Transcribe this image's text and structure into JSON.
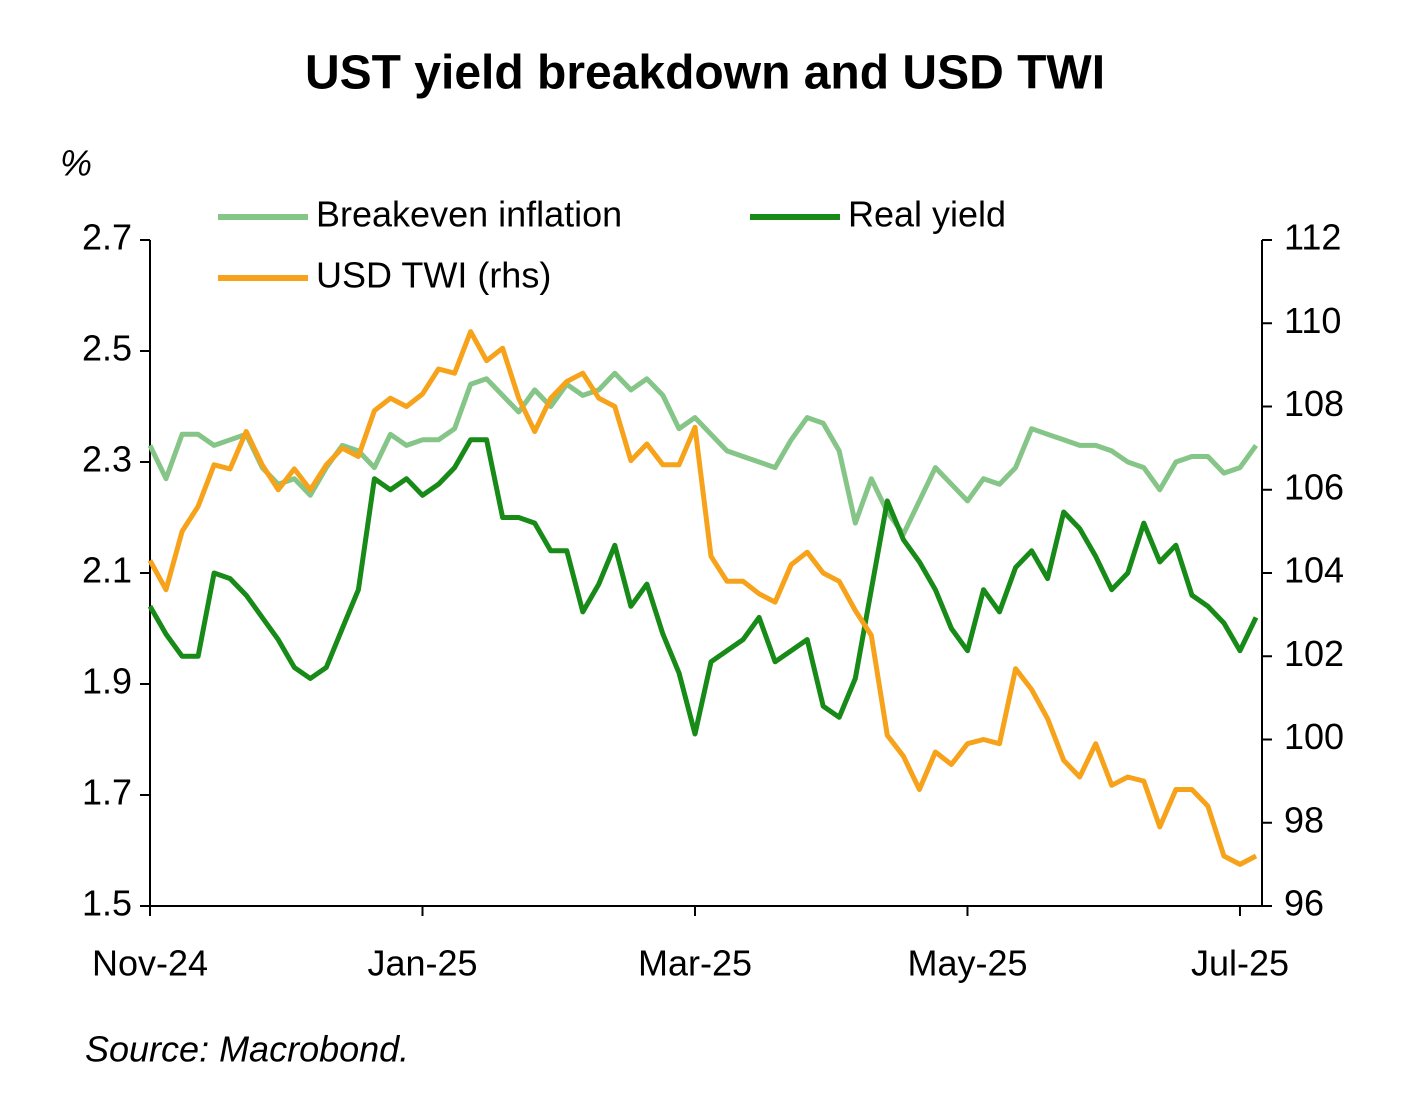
{
  "chart_data": {
    "type": "line",
    "title": "UST yield breakdown and USD TWI",
    "y_label": "%",
    "source": "Source: Macrobond.",
    "categories": [
      "Nov-24",
      null,
      null,
      null,
      null,
      null,
      null,
      null,
      null,
      null,
      null,
      null,
      null,
      null,
      null,
      null,
      null,
      "Jan-25",
      null,
      null,
      null,
      null,
      null,
      null,
      null,
      null,
      null,
      null,
      null,
      null,
      null,
      null,
      null,
      null,
      "Mar-25",
      null,
      null,
      null,
      null,
      null,
      null,
      null,
      null,
      null,
      null,
      null,
      null,
      null,
      null,
      null,
      null,
      "May-25",
      null,
      null,
      null,
      null,
      null,
      null,
      null,
      null,
      null,
      null,
      null,
      null,
      null,
      null,
      null,
      null,
      "Jul-25",
      null
    ],
    "ylim": [
      1.5,
      2.7
    ],
    "yticks": [
      1.5,
      1.7,
      1.9,
      2.1,
      2.3,
      2.5,
      2.7
    ],
    "y2lim": [
      96,
      112
    ],
    "y2ticks": [
      96,
      98,
      100,
      102,
      104,
      106,
      108,
      110,
      112
    ],
    "grid": false,
    "legend": "top",
    "series": [
      {
        "name": "Breakeven inflation",
        "color": "#86c588",
        "values": [
          2.33,
          2.27,
          2.35,
          2.35,
          2.33,
          2.34,
          2.35,
          2.29,
          2.26,
          2.27,
          2.24,
          2.29,
          2.33,
          2.32,
          2.29,
          2.35,
          2.33,
          2.34,
          2.34,
          2.36,
          2.44,
          2.45,
          2.42,
          2.39,
          2.43,
          2.4,
          2.44,
          2.42,
          2.43,
          2.46,
          2.43,
          2.45,
          2.42,
          2.36,
          2.38,
          2.35,
          2.32,
          2.31,
          2.3,
          2.29,
          2.34,
          2.38,
          2.37,
          2.32,
          2.19,
          2.27,
          2.21,
          2.17,
          2.23,
          2.29,
          2.26,
          2.23,
          2.27,
          2.26,
          2.29,
          2.36,
          2.35,
          2.34,
          2.33,
          2.33,
          2.32,
          2.3,
          2.29,
          2.25,
          2.3,
          2.31,
          2.31,
          2.28,
          2.29,
          2.33
        ]
      },
      {
        "name": "Real yield",
        "color": "#178a17",
        "values": [
          2.04,
          1.99,
          1.95,
          1.95,
          2.1,
          2.09,
          2.06,
          2.02,
          1.98,
          1.93,
          1.91,
          1.93,
          2.0,
          2.07,
          2.27,
          2.25,
          2.27,
          2.24,
          2.26,
          2.29,
          2.34,
          2.34,
          2.2,
          2.2,
          2.19,
          2.14,
          2.14,
          2.03,
          2.08,
          2.15,
          2.04,
          2.08,
          1.99,
          1.92,
          1.81,
          1.94,
          1.96,
          1.98,
          2.02,
          1.94,
          1.96,
          1.98,
          1.86,
          1.84,
          1.91,
          2.07,
          2.23,
          2.16,
          2.12,
          2.07,
          2.0,
          1.96,
          2.07,
          2.03,
          2.11,
          2.14,
          2.09,
          2.21,
          2.18,
          2.13,
          2.07,
          2.1,
          2.19,
          2.12,
          2.15,
          2.06,
          2.04,
          2.01,
          1.96,
          2.02
        ]
      },
      {
        "name": "USD TWI (rhs)",
        "color": "#f7a21b",
        "axis": "y2",
        "values": [
          104.3,
          103.6,
          105.0,
          105.6,
          106.6,
          106.5,
          107.4,
          106.6,
          106.0,
          106.5,
          106.0,
          106.6,
          107.0,
          106.8,
          107.9,
          108.2,
          108.0,
          108.3,
          108.9,
          108.8,
          109.8,
          109.1,
          109.4,
          108.2,
          107.4,
          108.2,
          108.6,
          108.8,
          108.2,
          108.0,
          106.7,
          107.1,
          106.6,
          106.6,
          107.5,
          104.4,
          103.8,
          103.8,
          103.5,
          103.3,
          104.2,
          104.5,
          104.0,
          103.8,
          103.1,
          102.5,
          100.1,
          99.6,
          98.8,
          99.7,
          99.4,
          99.9,
          100.0,
          99.9,
          101.7,
          101.2,
          100.5,
          99.5,
          99.1,
          99.9,
          98.9,
          99.1,
          99.0,
          97.9,
          98.8,
          98.8,
          98.4,
          97.2,
          97.0,
          97.2
        ]
      }
    ]
  }
}
